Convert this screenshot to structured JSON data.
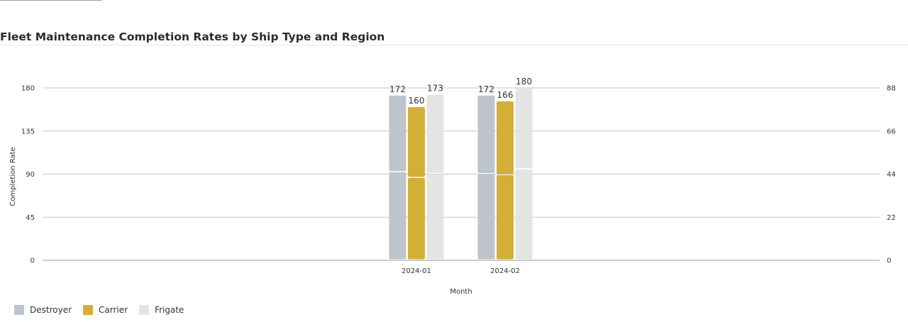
{
  "chart_data": {
    "type": "bar",
    "stacked": true,
    "title": "Fleet Maintenance Completion Rates by Ship Type and Region",
    "xlabel": "Month",
    "ylabel": "Completion Rate",
    "categories": [
      "2024-01",
      "2024-02"
    ],
    "ylim": [
      0,
      180
    ],
    "yticks": [
      0,
      45,
      90,
      135,
      180
    ],
    "y2ticks": [
      0,
      22,
      44,
      66,
      88
    ],
    "grid": true,
    "legend_position": "bottom-left",
    "series": [
      {
        "name": "Destroyer",
        "color": "#bdc5cc",
        "segments": [
          [
            92,
            80
          ],
          [
            90,
            82
          ]
        ],
        "totals": [
          172,
          172
        ]
      },
      {
        "name": "Carrier",
        "color": "#d4af37",
        "segments": [
          [
            86,
            74
          ],
          [
            89,
            77
          ]
        ],
        "totals": [
          160,
          166
        ]
      },
      {
        "name": "Frigate",
        "color": "#e4e4e2",
        "segments": [
          [
            90,
            83
          ],
          [
            95,
            85
          ]
        ],
        "totals": [
          173,
          180
        ]
      }
    ]
  }
}
